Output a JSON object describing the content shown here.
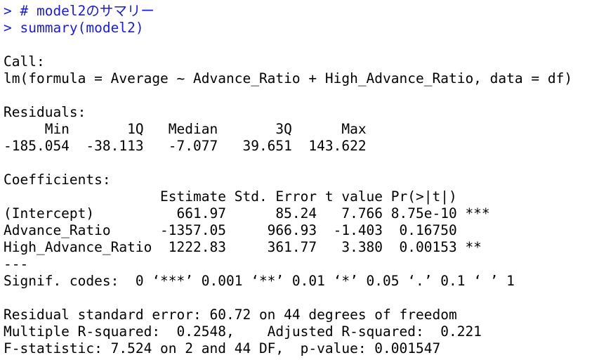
{
  "console": {
    "input": [
      "> # model2のサマリー",
      "> summary(model2)"
    ],
    "output": [
      [
        "Call:",
        "lm(formula = Average ~ Advance_Ratio + High_Advance_Ratio, data = df)"
      ],
      [
        "Residuals:",
        "     Min       1Q   Median       3Q      Max",
        "-185.054  -38.113   -7.077   39.651  143.622"
      ],
      [
        "Coefficients:",
        "                   Estimate Std. Error t value Pr(>|t|)",
        "(Intercept)          661.97      85.24   7.766 8.75e-10 ***",
        "Advance_Ratio      -1357.05     966.93  -1.403  0.16750",
        "High_Advance_Ratio  1222.83     361.77   3.380  0.00153 **",
        "---",
        "Signif. codes:  0 ‘***’ 0.001 ‘**’ 0.01 ‘*’ 0.05 ‘.’ 0.1 ‘ ’ 1"
      ],
      [
        "Residual standard error: 60.72 on 44 degrees of freedom",
        "Multiple R-squared:  0.2548,    Adjusted R-squared:  0.221",
        "F-statistic: 7.524 on 2 and 44 DF,  p-value: 0.001547"
      ]
    ]
  }
}
